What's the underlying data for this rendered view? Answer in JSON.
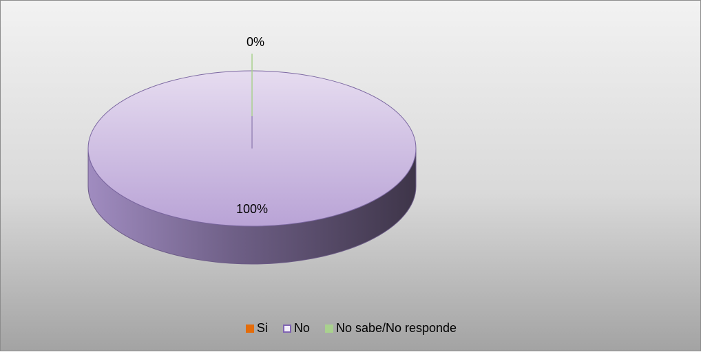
{
  "chart_data": {
    "type": "pie",
    "categories": [
      "Si",
      "No",
      "No sabe/No responde"
    ],
    "values": [
      0,
      100,
      0
    ],
    "data_labels": [
      "",
      "100%",
      "0%"
    ],
    "colors": [
      "#e46c0a",
      "#cdb8e4",
      "#a9d18e"
    ],
    "legend": [
      "Si",
      "No",
      "No sabe/No responde"
    ],
    "legend_placement": "bottom",
    "grid": false,
    "style": "3d"
  }
}
